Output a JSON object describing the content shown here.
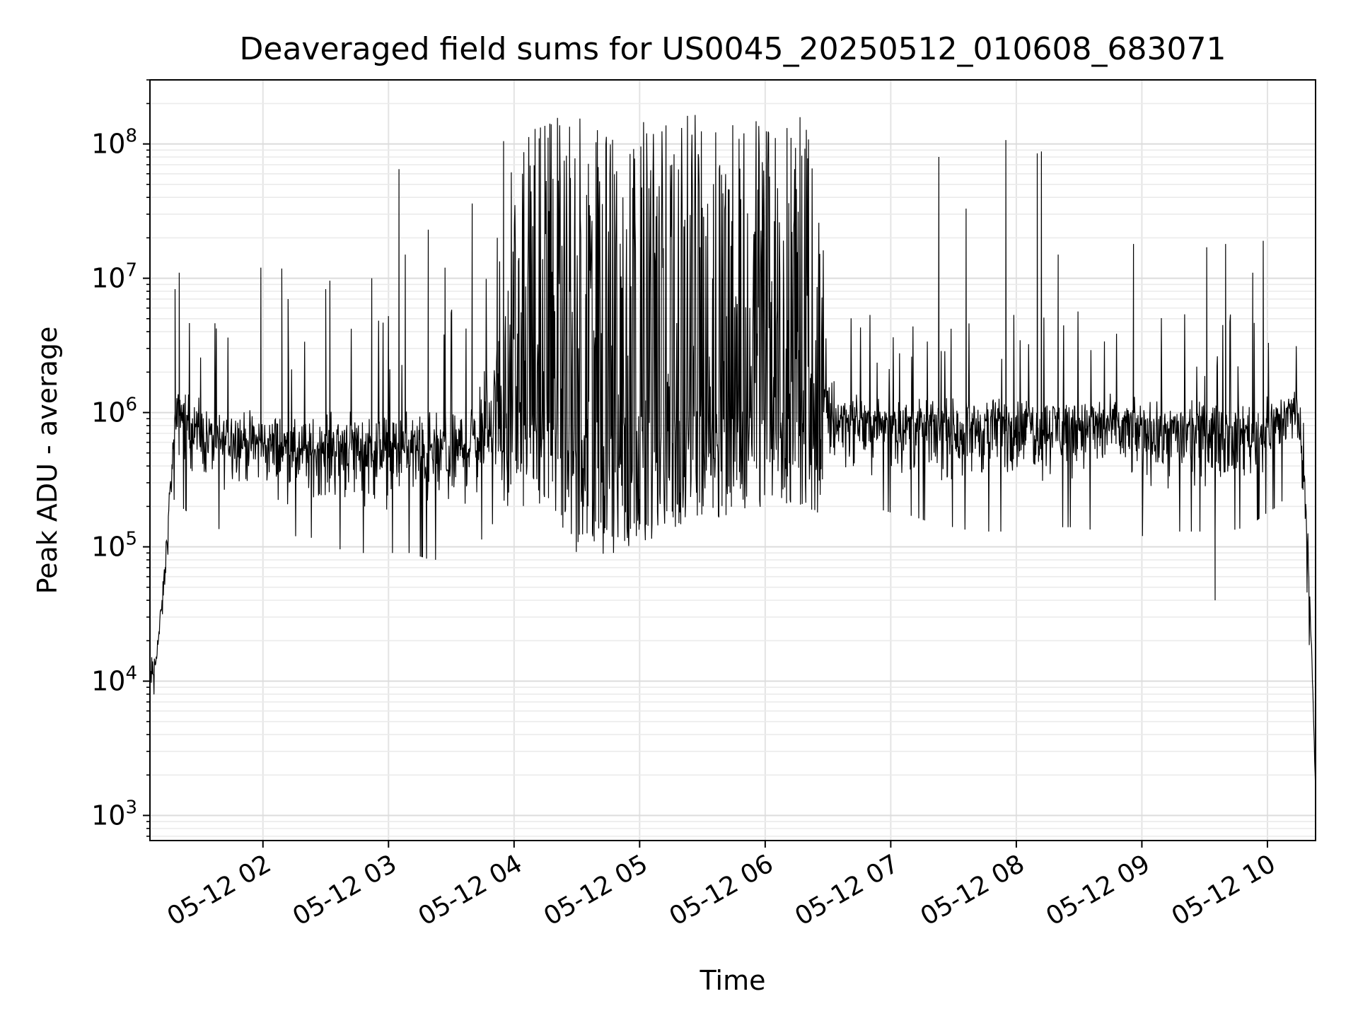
{
  "chart_data": {
    "type": "line",
    "title": "Deaveraged field sums for US0045_20250512_010608_683071",
    "xlabel": "Time",
    "ylabel": "Peak ADU - average",
    "y_scale": "log",
    "x_range": [
      "2025-05-12 01:06",
      "2025-05-12 10:23"
    ],
    "ylim": [
      650,
      300000000
    ],
    "grid": true,
    "grid_minor": true,
    "line_color": "#000000",
    "x_tick_labels": [
      "05-12 02",
      "05-12 03",
      "05-12 04",
      "05-12 05",
      "05-12 06",
      "05-12 07",
      "05-12 08",
      "05-12 09",
      "05-12 10"
    ],
    "x_tick_times": [
      "2025-05-12 02:00",
      "2025-05-12 03:00",
      "2025-05-12 04:00",
      "2025-05-12 05:00",
      "2025-05-12 06:00",
      "2025-05-12 07:00",
      "2025-05-12 08:00",
      "2025-05-12 09:00",
      "2025-05-12 10:00"
    ],
    "y_ticks": [
      {
        "value": 1000,
        "base": "10",
        "exp": "3"
      },
      {
        "value": 10000,
        "base": "10",
        "exp": "4"
      },
      {
        "value": 100000,
        "base": "10",
        "exp": "5"
      },
      {
        "value": 1000000,
        "base": "10",
        "exp": "6"
      },
      {
        "value": 10000000,
        "base": "10",
        "exp": "7"
      },
      {
        "value": 100000000,
        "base": "10",
        "exp": "8"
      }
    ],
    "series": [
      {
        "values_description_note": "",
        "x": [
          "2025-05-12 01:06",
          "2025-05-12 01:08",
          "2025-05-12 01:10",
          "2025-05-12 01:12",
          "2025-05-12 01:14",
          "2025-05-12 01:16",
          "2025-05-12 01:18",
          "2025-05-12 01:20",
          "2025-05-12 01:25",
          "2025-05-12 01:30",
          "2025-05-12 01:35",
          "2025-05-12 01:40",
          "2025-05-12 01:45",
          "2025-05-12 01:50",
          "2025-05-12 01:55",
          "2025-05-12 02:00",
          "2025-05-12 02:10",
          "2025-05-12 02:20",
          "2025-05-12 02:30",
          "2025-05-12 02:40",
          "2025-05-12 02:50",
          "2025-05-12 03:00",
          "2025-05-12 03:10",
          "2025-05-12 03:20",
          "2025-05-12 03:30",
          "2025-05-12 03:40",
          "2025-05-12 03:50",
          "2025-05-12 04:00",
          "2025-05-12 04:10",
          "2025-05-12 04:20",
          "2025-05-12 04:30",
          "2025-05-12 04:40",
          "2025-05-12 04:50",
          "2025-05-12 05:00",
          "2025-05-12 05:10",
          "2025-05-12 05:20",
          "2025-05-12 05:30",
          "2025-05-12 05:40",
          "2025-05-12 05:50",
          "2025-05-12 06:00",
          "2025-05-12 06:10",
          "2025-05-12 06:20",
          "2025-05-12 06:30",
          "2025-05-12 06:40",
          "2025-05-12 06:50",
          "2025-05-12 07:00",
          "2025-05-12 07:10",
          "2025-05-12 07:20",
          "2025-05-12 07:30",
          "2025-05-12 07:40",
          "2025-05-12 07:50",
          "2025-05-12 08:00",
          "2025-05-12 08:10",
          "2025-05-12 08:20",
          "2025-05-12 08:30",
          "2025-05-12 08:40",
          "2025-05-12 08:50",
          "2025-05-12 09:00",
          "2025-05-12 09:10",
          "2025-05-12 09:20",
          "2025-05-12 09:30",
          "2025-05-12 09:40",
          "2025-05-12 09:50",
          "2025-05-12 10:00",
          "2025-05-12 10:05",
          "2025-05-12 10:10",
          "2025-05-12 10:14",
          "2025-05-12 10:18",
          "2025-05-12 10:21",
          "2025-05-12 10:23"
        ],
        "baseline": [
          10000,
          12000,
          20000,
          40000,
          100000,
          300000,
          800000,
          1100000,
          900000,
          700000,
          650000,
          600000,
          700000,
          650000,
          600000,
          600000,
          550000,
          500000,
          550000,
          600000,
          550000,
          500000,
          550000,
          500000,
          500000,
          600000,
          900000,
          1200000,
          1200000,
          1100000,
          1000000,
          900000,
          900000,
          950000,
          1000000,
          1100000,
          1200000,
          1300000,
          1300000,
          1200000,
          1000000,
          900000,
          900000,
          900000,
          850000,
          850000,
          800000,
          800000,
          800000,
          800000,
          850000,
          850000,
          850000,
          850000,
          850000,
          850000,
          800000,
          800000,
          750000,
          750000,
          750000,
          750000,
          750000,
          800000,
          900000,
          1000000,
          1200000,
          300000,
          20000,
          1500
        ],
        "noise_low": [
          7000,
          8000,
          15000,
          20000,
          40000,
          150000,
          250000,
          200000,
          180000,
          170000,
          160000,
          130000,
          150000,
          150000,
          140000,
          130000,
          120000,
          120000,
          110000,
          90000,
          90000,
          90000,
          90000,
          80000,
          80000,
          90000,
          150000,
          200000,
          180000,
          140000,
          80000,
          80000,
          80000,
          90000,
          120000,
          140000,
          150000,
          170000,
          180000,
          200000,
          200000,
          180000,
          170000,
          200000,
          200000,
          180000,
          170000,
          150000,
          140000,
          130000,
          130000,
          130000,
          140000,
          140000,
          140000,
          130000,
          130000,
          120000,
          130000,
          130000,
          130000,
          130000,
          140000,
          180000,
          200000,
          250000,
          300000,
          100000,
          8000,
          1500
        ],
        "noise_high": [
          20000,
          25000,
          35000,
          60000,
          200000,
          700000,
          1500000,
          2500000,
          2000000,
          1800000,
          1700000,
          1600000,
          1800000,
          1600000,
          1500000,
          1500000,
          1800000,
          1500000,
          2000000,
          2000000,
          1800000,
          1800000,
          2000000,
          2000000,
          2000000,
          3000000,
          10000000,
          100000000,
          160000000,
          160000000,
          160000000,
          160000000,
          160000000,
          160000000,
          160000000,
          165000000,
          165000000,
          165000000,
          165000000,
          165000000,
          160000000,
          160000000,
          10000000,
          2000000,
          1800000,
          1800000,
          1800000,
          1800000,
          1900000,
          1900000,
          1900000,
          1900000,
          1900000,
          1900000,
          1900000,
          1800000,
          1800000,
          1800000,
          1800000,
          1800000,
          1800000,
          1800000,
          1800000,
          2000000,
          2000000,
          2100000,
          1800000,
          300000,
          30000,
          1500
        ],
        "spikes": [
          {
            "x": "2025-05-12 01:20",
            "y": 11000000
          },
          {
            "x": "2025-05-12 01:18",
            "y": 8300000
          },
          {
            "x": "2025-05-12 01:59",
            "y": 12000000
          },
          {
            "x": "2025-05-12 02:09",
            "y": 11800000
          },
          {
            "x": "2025-05-12 02:12",
            "y": 7000000
          },
          {
            "x": "2025-05-12 02:30",
            "y": 8300000
          },
          {
            "x": "2025-05-12 02:32",
            "y": 9600000
          },
          {
            "x": "2025-05-12 02:52",
            "y": 10000000
          },
          {
            "x": "2025-05-12 03:05",
            "y": 65000000
          },
          {
            "x": "2025-05-12 03:08",
            "y": 15000000
          },
          {
            "x": "2025-05-12 03:19",
            "y": 23000000
          },
          {
            "x": "2025-05-12 03:27",
            "y": 12000000
          },
          {
            "x": "2025-05-12 03:40",
            "y": 36000000
          },
          {
            "x": "2025-05-12 03:52",
            "y": 20000000
          },
          {
            "x": "2025-05-12 03:55",
            "y": 105000000
          },
          {
            "x": "2025-05-12 04:12",
            "y": 110000000
          },
          {
            "x": "2025-05-12 07:23",
            "y": 80000000
          },
          {
            "x": "2025-05-12 07:36",
            "y": 33000000
          },
          {
            "x": "2025-05-12 07:55",
            "y": 107000000
          },
          {
            "x": "2025-05-12 08:10",
            "y": 85000000
          },
          {
            "x": "2025-05-12 08:12",
            "y": 88000000
          },
          {
            "x": "2025-05-12 08:20",
            "y": 15000000
          },
          {
            "x": "2025-05-12 08:56",
            "y": 18000000
          },
          {
            "x": "2025-05-12 09:31",
            "y": 17000000
          },
          {
            "x": "2025-05-12 09:40",
            "y": 18000000
          },
          {
            "x": "2025-05-12 09:58",
            "y": 19000000
          },
          {
            "x": "2025-05-12 09:53",
            "y": 11000000
          },
          {
            "x": "2025-05-12 09:35",
            "y": 40000
          }
        ]
      }
    ]
  }
}
